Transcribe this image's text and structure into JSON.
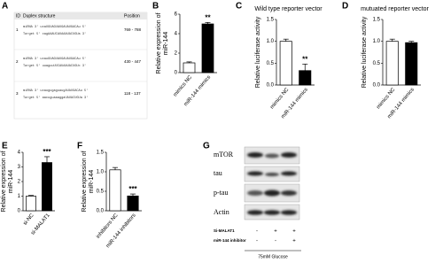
{
  "table": {
    "label": "A",
    "header": [
      "ID",
      "Duplex structure",
      "Position"
    ],
    "rows": [
      {
        "id": "1",
        "mirna": "miRNA  3' ucaUGUAGUAUGAUAUGACAu 5'",
        "target": "Target 5' cagAAAUCAUAAAUACUGUa 3'",
        "position": "769 - 788"
      },
      {
        "id": "2",
        "mirna": "miRNA  3' ucauGUAGUAUGAUAUGACAu 5'",
        "target": "Target 5' uuaguuUUCAUAAUACUGUc 3'",
        "position": "430 - 447"
      },
      {
        "id": "3",
        "mirna": "miRNA  3' ucaugugaguaugAUAUGACAu 5'",
        "target": "Target 5' aacuguaaaggaUAUACUGUa 3'",
        "position": "118 - 137"
      }
    ]
  },
  "chart_data": [
    {
      "type": "bar",
      "label": "B",
      "ylabel": "Relative expression of miR-144",
      "categories": [
        "mimics NC",
        "miR-144 mimics"
      ],
      "values": [
        1,
        5
      ],
      "errors": [
        0.1,
        0.15
      ],
      "colors": [
        "#ffffff",
        "#000000"
      ],
      "ylim": [
        0,
        6
      ],
      "yticks": [
        0,
        2,
        4,
        6
      ],
      "annotation": "**"
    },
    {
      "type": "bar",
      "label": "C",
      "title": "Wild type reporter vector",
      "ylabel": "Relative luciferase activity",
      "categories": [
        "mimics NC",
        "miR-144 mimics"
      ],
      "values": [
        1.0,
        0.33
      ],
      "errors": [
        0.05,
        0.15
      ],
      "colors": [
        "#ffffff",
        "#000000"
      ],
      "ylim": [
        0,
        1.5
      ],
      "yticks": [
        {
          "value": 0,
          "label": "0.0"
        },
        0.5,
        {
          "value": 1,
          "label": "1.0"
        },
        1.5
      ],
      "annotation": "**"
    },
    {
      "type": "bar",
      "label": "D",
      "title": "mutuated reporter vector",
      "ylabel": "Relative luciferase activity",
      "categories": [
        "mimics NC",
        "miR-144 mimics"
      ],
      "values": [
        1.0,
        0.97
      ],
      "errors": [
        0.05,
        0.03
      ],
      "colors": [
        "#ffffff",
        "#000000"
      ],
      "ylim": [
        0,
        1.5
      ],
      "yticks": [
        {
          "value": 0,
          "label": "0.0"
        },
        0.5,
        {
          "value": 1,
          "label": "1.0"
        },
        1.5
      ]
    },
    {
      "type": "bar",
      "label": "E",
      "ylabel": "Relative expression of miR-144",
      "categories": [
        "si-NC",
        "si-MALAT1"
      ],
      "values": [
        1,
        3.3
      ],
      "errors": [
        0.05,
        0.4
      ],
      "colors": [
        "#ffffff",
        "#000000"
      ],
      "ylim": [
        0,
        4
      ],
      "yticks": [
        0,
        1,
        2,
        3,
        4
      ],
      "annotation": "***"
    },
    {
      "type": "bar",
      "label": "F",
      "ylabel": "Relative expression of miR-144",
      "categories": [
        "inhibitors NC",
        "miR-144 inhibitors"
      ],
      "values": [
        1.05,
        0.38
      ],
      "errors": [
        0.06,
        0.05
      ],
      "colors": [
        "#ffffff",
        "#000000"
      ],
      "ylim": [
        0,
        1.5
      ],
      "yticks": [
        {
          "value": 0,
          "label": "0.0"
        },
        0.5,
        {
          "value": 1,
          "label": "1.0"
        },
        1.5
      ],
      "annotation": "***"
    }
  ],
  "blot": {
    "label": "G",
    "proteins": [
      "mTOR",
      "tau",
      "p-tau",
      "Actin"
    ],
    "treatments": [
      {
        "name": "Si-MALAT1",
        "signs": [
          "-",
          "+",
          "+"
        ]
      },
      {
        "name": "miR-144 inhibitor",
        "signs": [
          "-",
          "-",
          "+"
        ]
      }
    ],
    "condition": "75mM Glucose"
  }
}
